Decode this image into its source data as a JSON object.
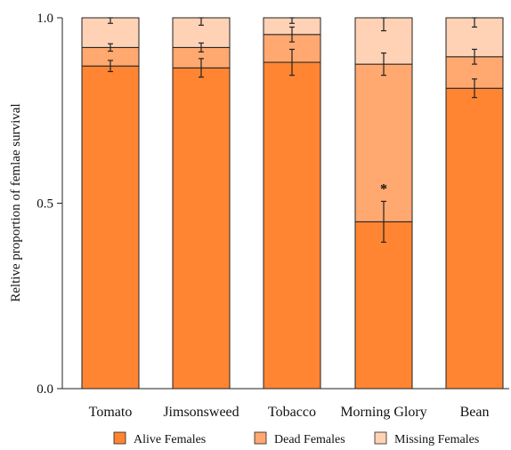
{
  "chart_data": {
    "type": "bar",
    "stacked": true,
    "ylabel": "Reltive proportion of femlae survival",
    "xlabel": "",
    "ylim": [
      0,
      1
    ],
    "yticks": [
      0,
      0.5,
      1
    ],
    "ytick_labels": [
      "0.0",
      "0.5",
      "1.0"
    ],
    "grid": false,
    "legend_position": "bottom",
    "categories": [
      "Tomato",
      "Jimsonsweed",
      "Tobacco",
      "Morning Glory",
      "Bean"
    ],
    "series": [
      {
        "name": "Alive Females",
        "color": "#FF8533",
        "values": [
          0.87,
          0.865,
          0.88,
          0.45,
          0.81
        ],
        "errors": [
          0.015,
          0.025,
          0.035,
          0.055,
          0.025
        ]
      },
      {
        "name": "Dead Females",
        "color": "#FFA870",
        "values": [
          0.05,
          0.055,
          0.075,
          0.425,
          0.085
        ],
        "errors": [
          0.01,
          0.012,
          0.02,
          0.03,
          0.02
        ]
      },
      {
        "name": "Missing Females",
        "color": "#FFD2B5",
        "values": [
          0.08,
          0.08,
          0.045,
          0.125,
          0.105
        ],
        "errors": [
          0.015,
          0.02,
          0.015,
          0.035,
          0.025
        ]
      }
    ],
    "annotations": [
      {
        "category": "Morning Glory",
        "y": 0.55,
        "text": "*"
      }
    ]
  }
}
